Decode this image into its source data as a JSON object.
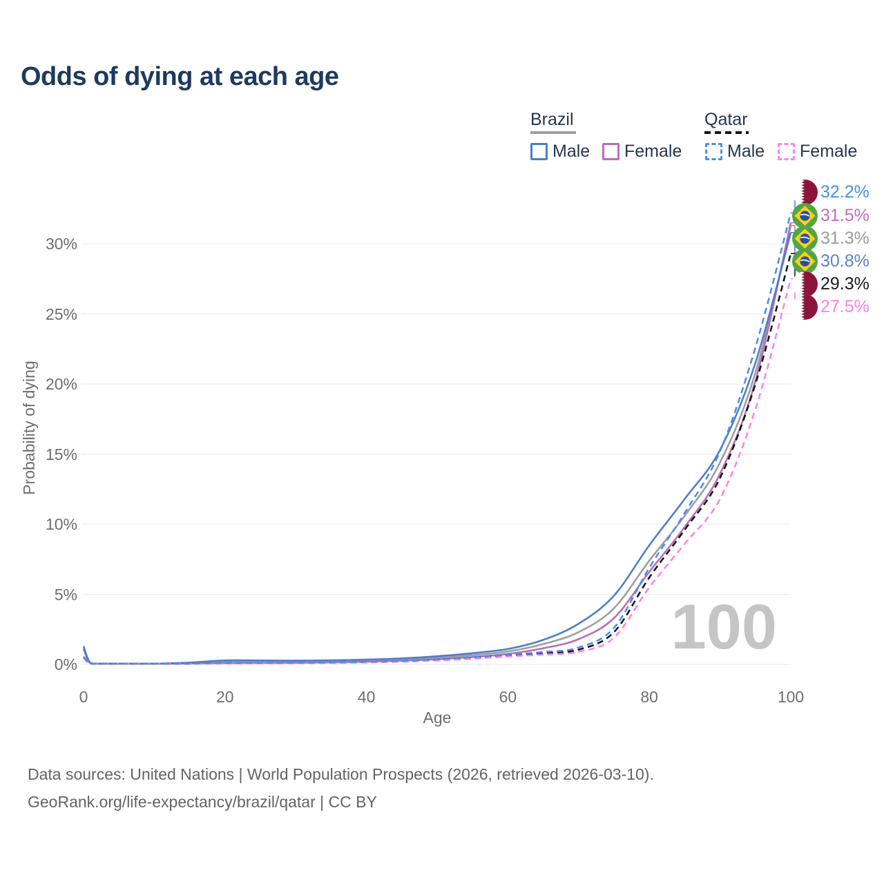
{
  "title": "Odds of dying at each age",
  "legend": {
    "groups": [
      {
        "country": "Brazil",
        "line_style": "solid",
        "line_color": "#9e9e9e",
        "items": [
          {
            "label": "Male",
            "style": "solid",
            "color": "#4d7ec6"
          },
          {
            "label": "Female",
            "style": "solid",
            "color": "#b66fb8"
          }
        ]
      },
      {
        "country": "Qatar",
        "line_style": "dashed",
        "line_color": "#161616",
        "items": [
          {
            "label": "Male",
            "style": "dashed",
            "color": "#4a8ef0"
          },
          {
            "label": "Female",
            "style": "dashed",
            "color": "#ff82ec"
          }
        ]
      }
    ]
  },
  "y_axis": {
    "title": "Probability of dying",
    "ticks": [
      "0%",
      "5%",
      "10%",
      "15%",
      "20%",
      "25%",
      "30%"
    ],
    "tick_values": [
      0,
      5,
      10,
      15,
      20,
      25,
      30
    ]
  },
  "x_axis": {
    "title": "Age",
    "ticks": [
      "0",
      "20",
      "40",
      "60",
      "80",
      "100"
    ],
    "tick_values": [
      0,
      20,
      40,
      60,
      80,
      100
    ]
  },
  "watermark": "100",
  "end_labels": [
    {
      "value": "32.2%",
      "flag": "qatar",
      "color": "#4a8ee8"
    },
    {
      "value": "31.5%",
      "flag": "brazil",
      "color": "#bd6ec1"
    },
    {
      "value": "31.3%",
      "flag": "brazil",
      "color": "#9b9b9b"
    },
    {
      "value": "30.8%",
      "flag": "brazil",
      "color": "#5b82ce"
    },
    {
      "value": "29.3%",
      "flag": "qatar",
      "color": "#1a1a1a"
    },
    {
      "value": "27.5%",
      "flag": "qatar",
      "color": "#ff7fea"
    }
  ],
  "footer": {
    "line1": "Data sources: United Nations | World Population Prospects (2026, retrieved 2026-03-10).",
    "line2": "GeoRank.org/life-expectancy/brazil/qatar | CC BY"
  },
  "chart_data": {
    "type": "line",
    "title": "Odds of dying at each age",
    "xlabel": "Age",
    "ylabel": "Probability of dying",
    "unit": "%",
    "xlim": [
      0,
      100
    ],
    "ylim": [
      0,
      30
    ],
    "grid": true,
    "legend_position": "top-right",
    "x": [
      0,
      1,
      3,
      5,
      10,
      15,
      20,
      25,
      30,
      35,
      40,
      45,
      50,
      55,
      60,
      65,
      70,
      75,
      80,
      85,
      90,
      95,
      100
    ],
    "series": [
      {
        "name": "Brazil",
        "country": "Brazil",
        "sex": "both",
        "style": "solid",
        "color": "#9e9e9e",
        "values": [
          1.2,
          0.08,
          0.045,
          0.035,
          0.035,
          0.09,
          0.19,
          0.19,
          0.19,
          0.21,
          0.26,
          0.34,
          0.47,
          0.66,
          0.92,
          1.45,
          2.3,
          4.0,
          7.4,
          10.6,
          14.4,
          20.8,
          31.3
        ],
        "end_label": "31.3%"
      },
      {
        "name": "Brazil Female",
        "country": "Brazil",
        "sex": "female",
        "style": "solid",
        "color": "#b66fb8",
        "values": [
          1.1,
          0.07,
          0.04,
          0.03,
          0.03,
          0.06,
          0.09,
          0.1,
          0.11,
          0.14,
          0.19,
          0.26,
          0.37,
          0.52,
          0.75,
          1.15,
          1.8,
          3.3,
          6.6,
          9.8,
          13.6,
          20.2,
          31.5
        ],
        "end_label": "31.5%"
      },
      {
        "name": "Brazil Male",
        "country": "Brazil",
        "sex": "male",
        "style": "solid",
        "color": "#4d7ec6",
        "values": [
          1.3,
          0.09,
          0.05,
          0.04,
          0.04,
          0.13,
          0.28,
          0.28,
          0.27,
          0.29,
          0.34,
          0.43,
          0.58,
          0.8,
          1.1,
          1.75,
          2.9,
          4.9,
          8.5,
          11.8,
          15.3,
          21.5,
          30.8
        ],
        "end_label": "30.8%"
      },
      {
        "name": "Qatar",
        "country": "Qatar",
        "sex": "both",
        "style": "dashed",
        "color": "#161616",
        "values": [
          0.5,
          0.045,
          0.028,
          0.022,
          0.027,
          0.05,
          0.09,
          0.1,
          0.11,
          0.13,
          0.17,
          0.23,
          0.33,
          0.47,
          0.64,
          0.8,
          1.05,
          2.3,
          6.2,
          9.6,
          13.3,
          20.0,
          29.3
        ],
        "end_label": "29.3%"
      },
      {
        "name": "Qatar Female",
        "country": "Qatar",
        "sex": "female",
        "style": "dashed",
        "color": "#ff82ec",
        "values": [
          0.45,
          0.04,
          0.025,
          0.02,
          0.025,
          0.04,
          0.06,
          0.07,
          0.08,
          0.1,
          0.14,
          0.19,
          0.28,
          0.4,
          0.56,
          0.7,
          0.9,
          1.9,
          5.5,
          8.6,
          11.8,
          18.2,
          27.5
        ],
        "end_label": "27.5%"
      },
      {
        "name": "Qatar Male",
        "country": "Qatar",
        "sex": "male",
        "style": "dashed",
        "color": "#4a8ef0",
        "values": [
          0.55,
          0.05,
          0.03,
          0.025,
          0.03,
          0.06,
          0.1,
          0.11,
          0.12,
          0.14,
          0.18,
          0.25,
          0.36,
          0.52,
          0.7,
          0.88,
          1.2,
          2.6,
          6.9,
          10.8,
          15.2,
          22.6,
          32.2
        ],
        "end_label": "32.2%"
      }
    ]
  }
}
